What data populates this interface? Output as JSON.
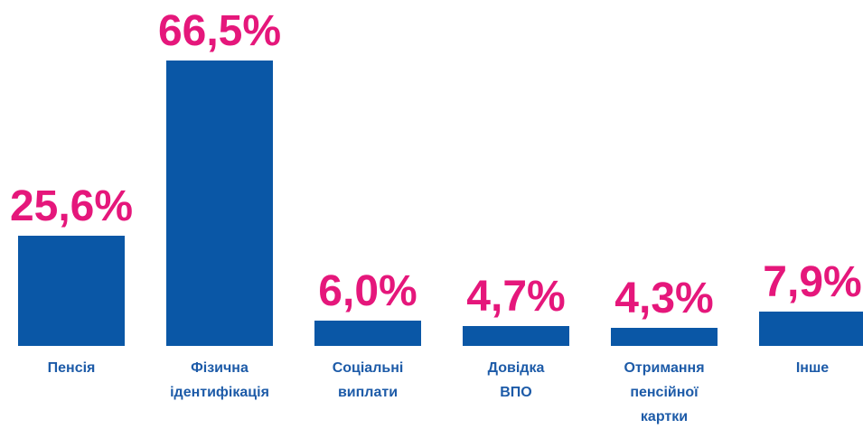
{
  "chart_data": {
    "type": "bar",
    "categories": [
      "Пенсія",
      "Фізична\nідентифікація",
      "Соціальні\nвиплати",
      "Довідка\nВПО",
      "Отримання\nпенсійної\nкартки",
      "Інше"
    ],
    "values": [
      25.6,
      66.5,
      6.0,
      4.7,
      4.3,
      7.9
    ],
    "value_labels": [
      "25,6%",
      "66,5%",
      "6,0%",
      "4,7%",
      "4,3%",
      "7,9%"
    ],
    "color": "#0a57a6",
    "label_color": "#e5177b",
    "category_color": "#1d5ba8"
  }
}
